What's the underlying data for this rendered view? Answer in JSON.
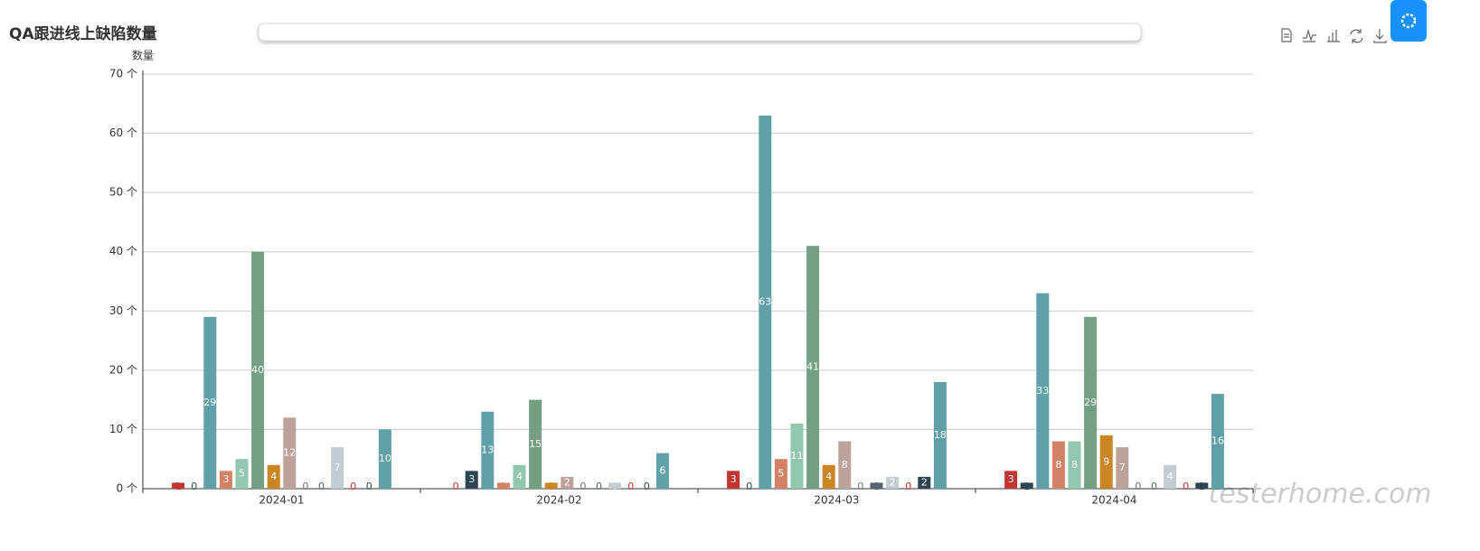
{
  "chart_data": {
    "type": "bar",
    "title": "QA跟进线上缺陷数量",
    "y_axis_label": "数量",
    "watermark": "testerhome.com",
    "categories": [
      "2024-01",
      "2024-02",
      "2024-03",
      "2024-04"
    ],
    "series": [
      {
        "color": "#c23531",
        "values": [
          1,
          0,
          3,
          3
        ]
      },
      {
        "color": "#2f4554",
        "values": [
          0,
          3,
          0,
          1
        ]
      },
      {
        "color": "#61a0a8",
        "values": [
          29,
          13,
          63,
          33
        ]
      },
      {
        "color": "#d48265",
        "values": [
          3,
          1,
          5,
          8
        ]
      },
      {
        "color": "#91c7ae",
        "values": [
          5,
          4,
          11,
          8
        ]
      },
      {
        "color": "#749f83",
        "values": [
          40,
          15,
          41,
          29
        ]
      },
      {
        "color": "#ca8622",
        "values": [
          4,
          1,
          4,
          9
        ]
      },
      {
        "color": "#bda29a",
        "values": [
          12,
          2,
          8,
          7
        ]
      },
      {
        "color": "#6e7074",
        "values": [
          0,
          0,
          0,
          0
        ]
      },
      {
        "color": "#546570",
        "values": [
          0,
          0,
          1,
          0
        ]
      },
      {
        "color": "#c4ccd3",
        "values": [
          7,
          1,
          2,
          4
        ]
      },
      {
        "color": "#c23531",
        "values": [
          0,
          0,
          0,
          0
        ]
      },
      {
        "color": "#2f4554",
        "values": [
          0,
          0,
          2,
          1
        ]
      },
      {
        "color": "#61a0a8",
        "values": [
          10,
          6,
          18,
          16
        ]
      }
    ],
    "ylim": [
      0,
      70
    ],
    "yticks": [
      {
        "value": 0,
        "label": "0 个"
      },
      {
        "value": 10,
        "label": "10 个"
      },
      {
        "value": 20,
        "label": "20 个"
      },
      {
        "value": 30,
        "label": "30 个"
      },
      {
        "value": 40,
        "label": "40 个"
      },
      {
        "value": 50,
        "label": "50 个"
      },
      {
        "value": 60,
        "label": "60 个"
      },
      {
        "value": 70,
        "label": "70 个"
      }
    ],
    "grid": true
  }
}
